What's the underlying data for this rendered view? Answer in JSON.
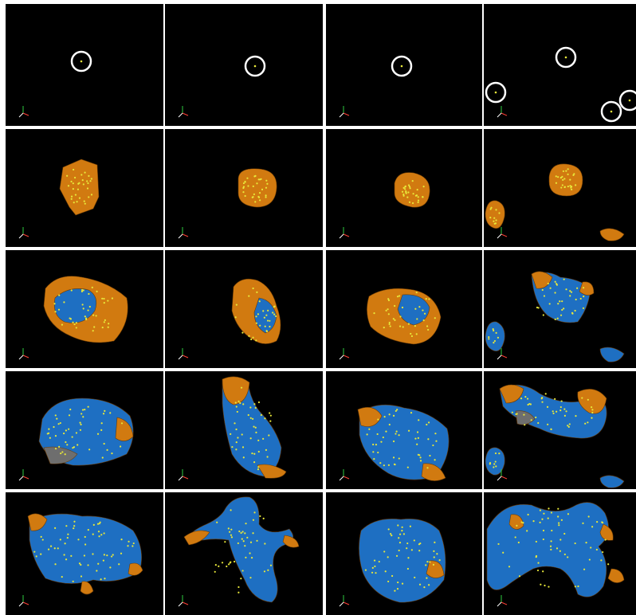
{
  "colors": {
    "background": "#000000",
    "grid_line": "#ffffff",
    "surface_orange": "#d17a10",
    "surface_blue": "#1e6fc2",
    "surface_gray": "#6e6e6e",
    "marker_yellow": "#e8e83a",
    "seed_circle": "#ffffff"
  },
  "grid": {
    "rows": 5,
    "columns": 4
  },
  "panels": [
    {
      "row": 1,
      "col": 1,
      "stage": "seed-points",
      "icon": "axis-triad-icon"
    },
    {
      "row": 1,
      "col": 2,
      "stage": "seed-points",
      "icon": "axis-triad-icon"
    },
    {
      "row": 1,
      "col": 3,
      "stage": "seed-points",
      "icon": "axis-triad-icon"
    },
    {
      "row": 1,
      "col": 4,
      "stage": "seed-points",
      "icon": "axis-triad-icon"
    },
    {
      "row": 2,
      "col": 1,
      "stage": "initial-blob",
      "icon": "axis-triad-icon"
    },
    {
      "row": 2,
      "col": 2,
      "stage": "initial-blob",
      "icon": "axis-triad-icon"
    },
    {
      "row": 2,
      "col": 3,
      "stage": "initial-blob",
      "icon": "axis-triad-icon"
    },
    {
      "row": 2,
      "col": 4,
      "stage": "initial-blob",
      "icon": "axis-triad-icon"
    },
    {
      "row": 3,
      "col": 1,
      "stage": "partial-growth",
      "icon": "axis-triad-icon"
    },
    {
      "row": 3,
      "col": 2,
      "stage": "partial-growth",
      "icon": "axis-triad-icon"
    },
    {
      "row": 3,
      "col": 3,
      "stage": "partial-growth",
      "icon": "axis-triad-icon"
    },
    {
      "row": 3,
      "col": 4,
      "stage": "partial-growth",
      "icon": "axis-triad-icon"
    },
    {
      "row": 4,
      "col": 1,
      "stage": "advanced-growth",
      "icon": "axis-triad-icon"
    },
    {
      "row": 4,
      "col": 2,
      "stage": "advanced-growth",
      "icon": "axis-triad-icon"
    },
    {
      "row": 4,
      "col": 3,
      "stage": "advanced-growth",
      "icon": "axis-triad-icon"
    },
    {
      "row": 4,
      "col": 4,
      "stage": "advanced-growth",
      "icon": "axis-triad-icon"
    },
    {
      "row": 5,
      "col": 1,
      "stage": "final-shape",
      "icon": "axis-triad-icon"
    },
    {
      "row": 5,
      "col": 2,
      "stage": "final-shape",
      "icon": "axis-triad-icon"
    },
    {
      "row": 5,
      "col": 3,
      "stage": "final-shape",
      "icon": "axis-triad-icon"
    },
    {
      "row": 5,
      "col": 4,
      "stage": "final-shape",
      "icon": "axis-triad-icon"
    }
  ]
}
